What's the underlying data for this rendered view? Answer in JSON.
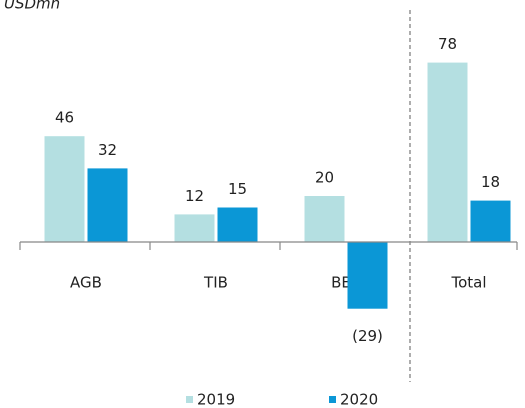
{
  "chart_data": {
    "type": "bar",
    "title": "USDmn",
    "categories": [
      "AGB",
      "TIB",
      "BBT",
      "Total"
    ],
    "series": [
      {
        "name": "2019",
        "color": "#b4dfe1",
        "values": [
          46,
          12,
          20,
          78
        ],
        "value_labels": [
          "46",
          "12",
          "20",
          "78"
        ]
      },
      {
        "name": "2020",
        "color": "#0b97d6",
        "values": [
          32,
          15,
          -29,
          18
        ],
        "value_labels": [
          "32",
          "15",
          "(29)",
          "18"
        ]
      }
    ],
    "ylim": [
      -40,
      90
    ],
    "legend": "bottom"
  }
}
